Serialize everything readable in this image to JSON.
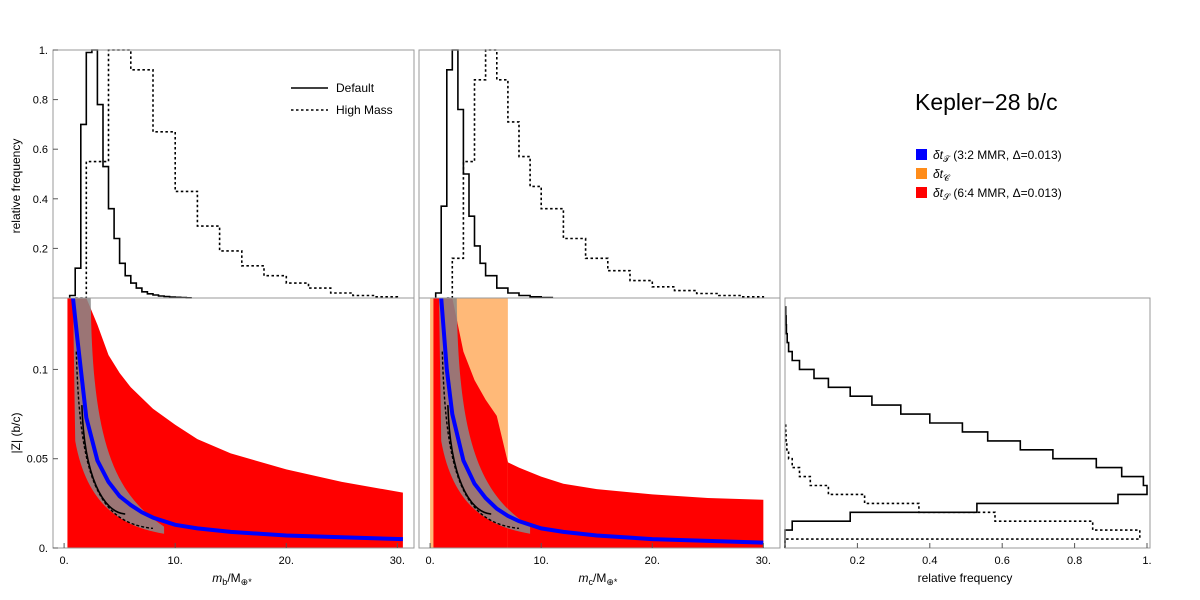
{
  "colors": {
    "red_region": "#ff0000",
    "orange_region": "#ffb978",
    "blue_curve": "#0000ff",
    "gray_scatter": "#8a8a8a",
    "line": "#000000"
  },
  "title": "Kepler−28 b/c",
  "legend_main": {
    "default": "Default",
    "high_mass": "High Mass"
  },
  "legend_regions": [
    {
      "symbol": "δt",
      "subscript": "𝒯",
      "text": " (3:2 MMR, Δ=0.013)",
      "color": "#0000ff"
    },
    {
      "symbol": "δt",
      "subscript": "𝒞",
      "text": "",
      "color": "#ff8c1a"
    },
    {
      "symbol": "δt",
      "subscript": "𝒮",
      "text": " (6:4 MMR, Δ=0.013)",
      "color": "#ff0000"
    }
  ],
  "labels": {
    "ylabel_top": "relative frequency",
    "ylabel_bottom": "|Z| (b/c)",
    "xlabel_b_main": "m",
    "xlabel_b_sub": "b",
    "xlabel_c_main": "m",
    "xlabel_c_sub": "c",
    "xlabel_denominator": "/M",
    "xlabel_denominator_sub": "⊕*",
    "xlabel_right": "relative frequency"
  },
  "ticks": {
    "freq_y": [
      "0.2",
      "0.4",
      "0.6",
      "0.8",
      "1."
    ],
    "freq_x": [
      "0.2",
      "0.4",
      "0.6",
      "0.8",
      "1."
    ],
    "mass_x": [
      "0.",
      "10.",
      "20.",
      "30."
    ],
    "z_y": [
      "0.",
      "0.05",
      "0.1"
    ]
  },
  "chart_data": [
    {
      "type": "line",
      "panel": "top-left",
      "xlabel": "m_b/M_⊕*",
      "ylabel": "relative frequency",
      "xlim": [
        -1,
        31.5
      ],
      "ylim": [
        0,
        1.0
      ],
      "series": [
        {
          "name": "Default",
          "style": "solid",
          "x": [
            0.5,
            1.0,
            1.5,
            2.0,
            2.5,
            3.0,
            3.5,
            4.0,
            4.5,
            5.0,
            5.5,
            6.0,
            6.5,
            7.0,
            7.5,
            8.0,
            8.5,
            9.0,
            9.5,
            10.0,
            10.5,
            11.0,
            11.5
          ],
          "y": [
            0.01,
            0.12,
            0.7,
            0.99,
            1.0,
            0.78,
            0.53,
            0.36,
            0.24,
            0.14,
            0.09,
            0.06,
            0.04,
            0.025,
            0.017,
            0.012,
            0.008,
            0.006,
            0.004,
            0.003,
            0.002,
            0.001,
            0.001
          ]
        },
        {
          "name": "High Mass",
          "style": "dotted",
          "x": [
            1.0,
            2.0,
            4.0,
            6.0,
            8.0,
            10.0,
            12.0,
            14.0,
            16.0,
            18.0,
            20.0,
            22.0,
            24.0,
            26.0,
            28.0,
            30.0
          ],
          "y": [
            0.0,
            0.55,
            1.0,
            0.92,
            0.67,
            0.43,
            0.29,
            0.19,
            0.13,
            0.09,
            0.06,
            0.04,
            0.02,
            0.01,
            0.005,
            0.002
          ]
        }
      ]
    },
    {
      "type": "line",
      "panel": "top-middle",
      "xlabel": "m_c/M_⊕*",
      "ylabel": "relative frequency",
      "xlim": [
        -1,
        31.5
      ],
      "ylim": [
        0,
        1.0
      ],
      "series": [
        {
          "name": "Default",
          "style": "solid",
          "x": [
            0.5,
            1.0,
            1.5,
            2.0,
            2.5,
            3.0,
            3.5,
            4.0,
            4.5,
            5.0,
            6.0,
            7.0,
            8.0,
            9.0,
            10.0,
            11.0
          ],
          "y": [
            0.02,
            0.37,
            0.92,
            1.0,
            0.76,
            0.5,
            0.33,
            0.21,
            0.14,
            0.09,
            0.04,
            0.02,
            0.01,
            0.005,
            0.002,
            0.001
          ]
        },
        {
          "name": "High Mass",
          "style": "dotted",
          "x": [
            1.5,
            2.0,
            3.0,
            4.0,
            5.0,
            6.0,
            7.0,
            8.0,
            9.0,
            10.0,
            12.0,
            14.0,
            16.0,
            18.0,
            20.0,
            22.0,
            24.0,
            26.0,
            28.0,
            30.0
          ],
          "y": [
            0.0,
            0.16,
            0.55,
            0.88,
            1.0,
            0.88,
            0.71,
            0.57,
            0.45,
            0.36,
            0.24,
            0.16,
            0.11,
            0.07,
            0.045,
            0.03,
            0.018,
            0.01,
            0.005,
            0.002
          ]
        }
      ]
    },
    {
      "type": "area",
      "panel": "bottom-left",
      "xlabel": "m_b/M_⊕*",
      "ylabel": "|Z| (b/c)",
      "xlim": [
        -1,
        31.5
      ],
      "ylim": [
        0,
        0.14
      ],
      "red_region": {
        "x": [
          0.3,
          1.0,
          2.0,
          3.0,
          4.0,
          5.0,
          6.0,
          8.0,
          10.0,
          12.0,
          15.0,
          20.0,
          25.0,
          30.5
        ],
        "y_upper": [
          0.14,
          0.14,
          0.14,
          0.125,
          0.108,
          0.098,
          0.09,
          0.078,
          0.069,
          0.061,
          0.053,
          0.044,
          0.037,
          0.031
        ],
        "y_lower": [
          0.0,
          0.0,
          0.0,
          0.0,
          0.0,
          0.0,
          0.0,
          0.0,
          0.0,
          0.0,
          0.0,
          0.0,
          0.0,
          0.0
        ]
      },
      "blue_curve": {
        "x": [
          0.8,
          1.2,
          2.0,
          3.0,
          4.0,
          5.0,
          6.0,
          7.0,
          8.0,
          10.0,
          12.0,
          15.0,
          20.0,
          25.0,
          30.5
        ],
        "y": [
          0.14,
          0.117,
          0.073,
          0.049,
          0.037,
          0.029,
          0.024,
          0.02,
          0.017,
          0.013,
          0.011,
          0.009,
          0.007,
          0.006,
          0.005
        ]
      }
    },
    {
      "type": "area",
      "panel": "bottom-middle",
      "xlabel": "m_c/M_⊕*",
      "ylabel": "|Z| (b/c)",
      "xlim": [
        -1,
        31.5
      ],
      "ylim": [
        0,
        0.14
      ],
      "orange_region": {
        "x": [
          0.0,
          7.0
        ],
        "y": [
          0.0,
          0.14
        ]
      },
      "red_region": {
        "x": [
          0.3,
          1.0,
          2.0,
          3.0,
          4.0,
          5.0,
          6.0,
          7.0,
          8.0,
          10.0,
          12.0,
          15.0,
          20.0,
          25.0,
          30.0
        ],
        "y_upper": [
          0.14,
          0.14,
          0.14,
          0.11,
          0.094,
          0.083,
          0.074,
          0.048,
          0.045,
          0.04,
          0.036,
          0.033,
          0.03,
          0.028,
          0.027
        ],
        "y_lower": [
          0.0,
          0.0,
          0.0,
          0.0,
          0.0,
          0.0,
          0.0,
          0.0,
          0.0,
          0.0,
          0.0,
          0.0,
          0.0,
          0.0,
          0.0
        ]
      },
      "blue_curve": {
        "x": [
          1.0,
          1.5,
          2.0,
          3.0,
          4.0,
          5.0,
          6.0,
          7.0,
          8.0,
          10.0,
          12.0,
          15.0,
          20.0,
          25.0,
          30.0
        ],
        "y": [
          0.14,
          0.1,
          0.075,
          0.049,
          0.036,
          0.028,
          0.022,
          0.018,
          0.015,
          0.011,
          0.009,
          0.007,
          0.005,
          0.004,
          0.003
        ]
      }
    },
    {
      "type": "line",
      "panel": "bottom-right",
      "xlabel": "relative frequency",
      "ylabel": "|Z| (b/c)",
      "xlim": [
        0,
        1.0
      ],
      "ylim": [
        0,
        0.14
      ],
      "series": [
        {
          "name": "Default",
          "style": "solid",
          "z": [
            0.0,
            0.005,
            0.01,
            0.015,
            0.02,
            0.025,
            0.03,
            0.035,
            0.04,
            0.045,
            0.05,
            0.055,
            0.06,
            0.065,
            0.07,
            0.075,
            0.08,
            0.085,
            0.09,
            0.095,
            0.1,
            0.105,
            0.11,
            0.115,
            0.12,
            0.125,
            0.13,
            0.135
          ],
          "f": [
            0.0,
            0.0,
            0.02,
            0.18,
            0.53,
            0.92,
            1.0,
            0.99,
            0.93,
            0.86,
            0.74,
            0.65,
            0.56,
            0.49,
            0.4,
            0.32,
            0.24,
            0.18,
            0.12,
            0.08,
            0.04,
            0.02,
            0.01,
            0.006,
            0.004,
            0.003,
            0.002,
            0.0
          ]
        },
        {
          "name": "High Mass",
          "style": "dotted",
          "z": [
            0.0,
            0.005,
            0.01,
            0.015,
            0.02,
            0.025,
            0.03,
            0.035,
            0.04,
            0.045,
            0.05,
            0.055,
            0.06,
            0.065,
            0.07
          ],
          "f": [
            0.0,
            0.98,
            0.85,
            0.58,
            0.37,
            0.22,
            0.12,
            0.07,
            0.04,
            0.02,
            0.01,
            0.005,
            0.003,
            0.002,
            0.0
          ]
        }
      ]
    }
  ]
}
